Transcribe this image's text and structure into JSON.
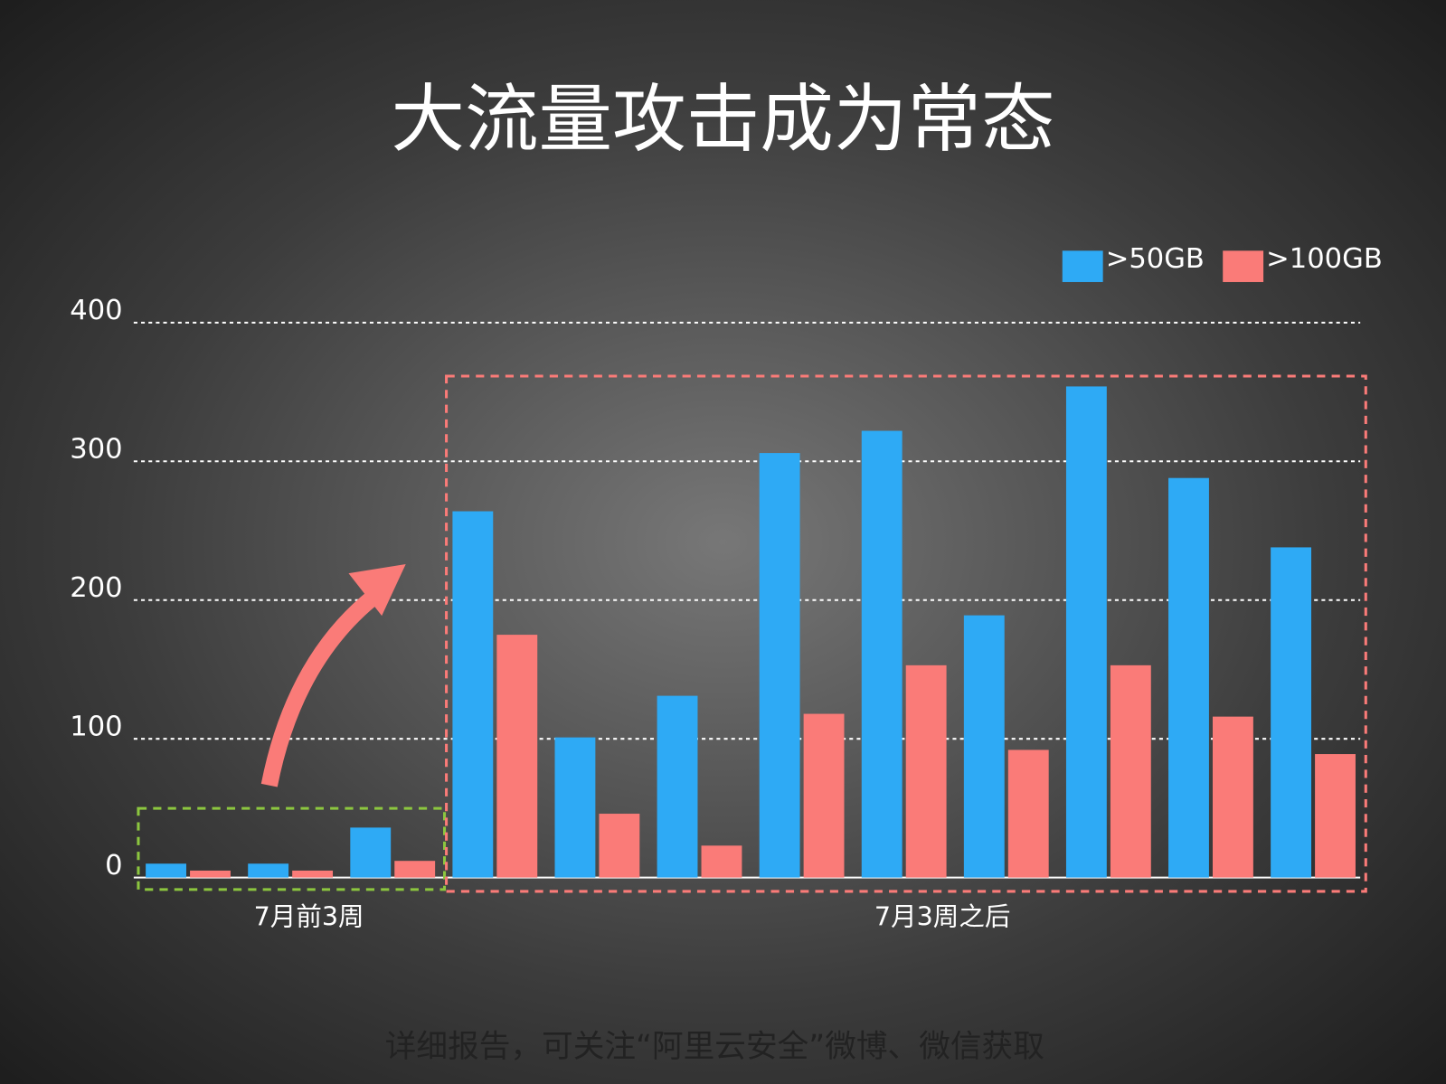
{
  "chart_data": {
    "type": "bar",
    "title": "大流量攻击成为常态",
    "categories": [
      null,
      null,
      null,
      null,
      null,
      null,
      null,
      null,
      null,
      null,
      null,
      null
    ],
    "series": [
      {
        "name": ">50GB",
        "color": "#2eaaf5",
        "values": [
          10,
          10,
          36,
          264,
          101,
          131,
          306,
          322,
          189,
          354,
          288,
          238
        ]
      },
      {
        "name": ">100GB",
        "color": "#fa7b78",
        "values": [
          5,
          5,
          12,
          175,
          46,
          23,
          118,
          153,
          92,
          153,
          116,
          89
        ]
      }
    ],
    "ylim": [
      0,
      400
    ],
    "yticks": [
      0,
      100,
      200,
      300,
      400
    ],
    "grid": true,
    "legend": "upper right",
    "group_labels": [
      "7月前3周",
      "7月3周之后"
    ],
    "footer": "详细报告，可关注“阿里云安全”微博、微信获取"
  }
}
